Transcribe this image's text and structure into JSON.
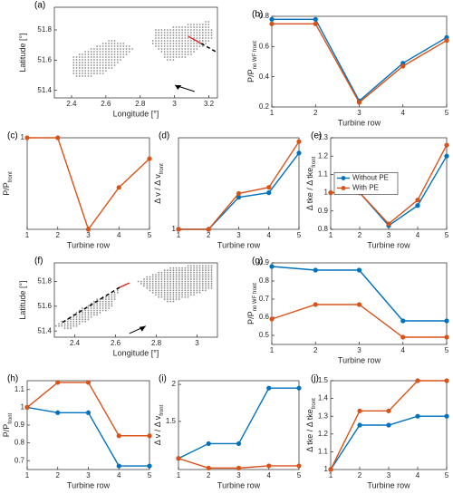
{
  "chart_data": [
    {
      "type": "map",
      "panel": "(a)",
      "xlabel": "Longitude [°]",
      "ylabel": {
        "main": "Latitude [°]"
      },
      "xlim": [
        2.3,
        3.25
      ],
      "xticks": [
        2.4,
        2.6,
        2.8,
        3,
        3.2
      ],
      "ylim": [
        51.35,
        51.95
      ],
      "yticks": [
        51.4,
        51.6,
        51.8
      ]
    },
    {
      "type": "line",
      "panel": "(b)",
      "xlabel": "Turbine row",
      "ylabel": {
        "main": "P/P",
        "sub": "no WF front"
      },
      "x": [
        1,
        2,
        3,
        4,
        5
      ],
      "xlim": [
        1,
        5
      ],
      "xticks": [
        1,
        2,
        3,
        4,
        5
      ],
      "ylim": [
        0.2,
        0.8
      ],
      "yticks": [
        0.2,
        0.4,
        0.6,
        0.8
      ],
      "series": [
        {
          "name": "Without PE",
          "color": "#0072bd",
          "values": [
            0.78,
            0.78,
            0.24,
            0.49,
            0.66
          ]
        },
        {
          "name": "With PE",
          "color": "#d95319",
          "values": [
            0.75,
            0.75,
            0.23,
            0.47,
            0.64
          ]
        }
      ]
    },
    {
      "type": "line",
      "panel": "(c)",
      "xlabel": "Turbine row",
      "ylabel": {
        "main": "P/P",
        "sub": "front"
      },
      "x": [
        1,
        2,
        3,
        4,
        5
      ],
      "xlim": [
        1,
        5
      ],
      "xticks": [
        1,
        2,
        3,
        4,
        5
      ],
      "ylim": [
        0.3,
        1
      ],
      "yticks": [
        1
      ],
      "series": [
        {
          "color": "#d95319",
          "values": [
            1,
            1,
            0.3,
            0.62,
            0.84
          ]
        }
      ]
    },
    {
      "type": "line",
      "panel": "(d)",
      "xlabel": "Turbine row",
      "ylabel": {
        "main": "Δ v / Δ v",
        "sub": "front"
      },
      "x": [
        1,
        2,
        3,
        4,
        5
      ],
      "xlim": [
        1,
        5
      ],
      "xticks": [
        1,
        2,
        3,
        4,
        5
      ],
      "ylim": [
        1,
        2.2
      ],
      "yticks": [
        1
      ],
      "series": [
        {
          "color": "#0072bd",
          "values": [
            1,
            1,
            1.42,
            1.48,
            2.0
          ]
        },
        {
          "color": "#d95319",
          "values": [
            1,
            1,
            1.47,
            1.55,
            2.15
          ]
        }
      ]
    },
    {
      "type": "line",
      "panel": "(e)",
      "xlabel": "Turbine row",
      "ylabel": {
        "main": "Δ tke / Δ tke",
        "sub": "front"
      },
      "x": [
        1,
        2,
        3,
        4,
        5
      ],
      "xlim": [
        1,
        5
      ],
      "xticks": [
        1,
        2,
        3,
        4,
        5
      ],
      "ylim": [
        0.8,
        1.3
      ],
      "yticks": [
        0.8,
        0.9,
        1,
        1.1,
        1.2,
        1.3
      ],
      "legend": "center left",
      "series": [
        {
          "name": "Without PE",
          "color": "#0072bd",
          "values": [
            1,
            1,
            0.82,
            0.93,
            1.2
          ]
        },
        {
          "name": "With PE",
          "color": "#d95319",
          "values": [
            1,
            1,
            0.83,
            0.96,
            1.26
          ]
        }
      ]
    },
    {
      "type": "map",
      "panel": "(f)",
      "xlabel": "Longitude [°]",
      "ylabel": {
        "main": "Latitude [°]"
      },
      "xlim": [
        2.3,
        3.1
      ],
      "xticks": [
        2.4,
        2.6,
        2.8,
        3
      ],
      "ylim": [
        51.35,
        51.95
      ],
      "yticks": [
        51.4,
        51.6,
        51.8
      ]
    },
    {
      "type": "line",
      "panel": "(g)",
      "xlabel": "Turbine row",
      "ylabel": {
        "main": "P/P",
        "sub": "no WF front"
      },
      "x": [
        1,
        2,
        3,
        4,
        5
      ],
      "xlim": [
        1,
        5
      ],
      "xticks": [
        1,
        2,
        3,
        4,
        5
      ],
      "ylim": [
        0.45,
        0.9
      ],
      "yticks": [
        0.5,
        0.6,
        0.7,
        0.8,
        0.9
      ],
      "series": [
        {
          "color": "#0072bd",
          "values": [
            0.88,
            0.86,
            0.86,
            0.58,
            0.58
          ]
        },
        {
          "color": "#d95319",
          "values": [
            0.59,
            0.67,
            0.67,
            0.49,
            0.49
          ]
        }
      ]
    },
    {
      "type": "line",
      "panel": "(h)",
      "xlabel": "Turbine row",
      "ylabel": {
        "main": "P/P",
        "sub": "front"
      },
      "x": [
        1,
        2,
        3,
        4,
        5
      ],
      "xlim": [
        1,
        5
      ],
      "xticks": [
        1,
        2,
        3,
        4,
        5
      ],
      "ylim": [
        0.65,
        1.15
      ],
      "yticks": [
        0.7,
        0.8,
        0.9,
        1,
        1.1
      ],
      "series": [
        {
          "color": "#0072bd",
          "values": [
            1,
            0.97,
            0.97,
            0.67,
            0.67
          ]
        },
        {
          "color": "#d95319",
          "values": [
            1,
            1.14,
            1.14,
            0.84,
            0.84
          ]
        }
      ]
    },
    {
      "type": "line",
      "panel": "(i)",
      "xlabel": "Turbine row",
      "ylabel": {
        "main": "Δ v / Δ v",
        "sub": "front"
      },
      "x": [
        1,
        2,
        3,
        4,
        5
      ],
      "xlim": [
        1,
        5
      ],
      "xticks": [
        1,
        2,
        3,
        4,
        5
      ],
      "ylim": [
        0.85,
        2.05
      ],
      "yticks": [
        1.5,
        2
      ],
      "series": [
        {
          "color": "#0072bd",
          "values": [
            1,
            1.2,
            1.2,
            1.95,
            1.95
          ]
        },
        {
          "color": "#d95319",
          "values": [
            1,
            0.87,
            0.87,
            0.9,
            0.9
          ]
        }
      ]
    },
    {
      "type": "line",
      "panel": "(j)",
      "xlabel": "Turbine row",
      "ylabel": {
        "main": "Δ tke / Δ tke",
        "sub": "front"
      },
      "x": [
        1,
        2,
        3,
        4,
        5
      ],
      "xlim": [
        1,
        5
      ],
      "xticks": [
        1,
        2,
        3,
        4,
        5
      ],
      "ylim": [
        1,
        1.5
      ],
      "yticks": [
        1,
        1.1,
        1.2,
        1.3,
        1.4,
        1.5
      ],
      "series": [
        {
          "color": "#0072bd",
          "values": [
            1,
            1.25,
            1.25,
            1.3,
            1.3
          ]
        },
        {
          "color": "#d95319",
          "values": [
            1,
            1.33,
            1.33,
            1.5,
            1.5
          ]
        }
      ]
    }
  ]
}
